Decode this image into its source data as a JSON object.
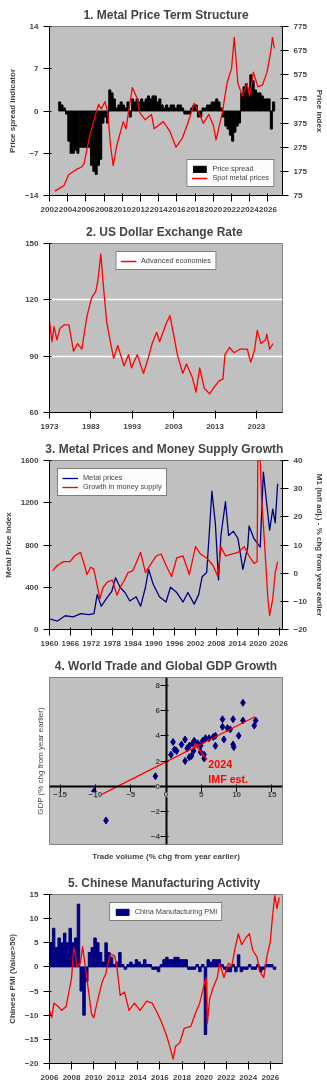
{
  "chart_data": [
    {
      "type": "bar",
      "title": "1. Metal Price Term Structure",
      "ylabel": "Price spread indicator",
      "y2label": "Price index",
      "xlim": [
        2002,
        2027.6
      ],
      "xticks": [
        2002,
        2004,
        2006,
        2008,
        2010,
        2012,
        2014,
        2016,
        2018,
        2020,
        2022,
        2024,
        2026
      ],
      "ylim": [
        -14,
        14
      ],
      "yticks": [
        -14,
        -7,
        0,
        7,
        14
      ],
      "y2lim": [
        75,
        775
      ],
      "y2ticks": [
        75,
        175,
        275,
        375,
        475,
        575,
        675,
        775
      ],
      "legend": "bottom right",
      "series": [
        {
          "name": "Price spread",
          "type": "bar",
          "color": "#000000",
          "x": [
            2003.125,
            2003.375,
            2003.625,
            2003.875,
            2004.125,
            2004.375,
            2004.625,
            2004.875,
            2005.125,
            2005.375,
            2005.625,
            2005.875,
            2006.125,
            2006.375,
            2006.625,
            2006.875,
            2007.125,
            2007.375,
            2007.625,
            2007.875,
            2008.125,
            2008.375,
            2008.625,
            2008.875,
            2009.125,
            2009.375,
            2009.625,
            2009.875,
            2010.125,
            2010.375,
            2010.625,
            2010.875,
            2011.125,
            2011.375,
            2011.625,
            2011.875,
            2012.125,
            2012.375,
            2012.625,
            2012.875,
            2013.125,
            2013.375,
            2013.625,
            2013.875,
            2014.125,
            2014.375,
            2014.625,
            2014.875,
            2015.125,
            2015.375,
            2015.625,
            2015.875,
            2016.125,
            2016.375,
            2016.625,
            2016.875,
            2017.125,
            2017.375,
            2017.625,
            2017.875,
            2018.125,
            2018.375,
            2018.625,
            2018.875,
            2019.125,
            2019.375,
            2019.625,
            2019.875,
            2020.125,
            2020.375,
            2020.625,
            2020.875,
            2021.125,
            2021.375,
            2021.625,
            2021.875,
            2022.125,
            2022.375,
            2022.625,
            2022.875,
            2023.125,
            2023.375,
            2023.625,
            2023.875,
            2024.125,
            2024.375,
            2024.625,
            2024.875,
            2025.125,
            2025.375,
            2025.625,
            2025.875,
            2026.125,
            2026.375,
            2026.625
          ],
          "values": [
            1.5,
            1,
            0.5,
            -0.5,
            -5,
            -7,
            -7,
            -6.5,
            -7,
            -6,
            -6,
            -6,
            -6,
            -6,
            -9,
            -10,
            -10.5,
            -9,
            -8,
            -2,
            -1,
            -2,
            3.5,
            3,
            2,
            0.5,
            1,
            1.5,
            1,
            0.5,
            1.5,
            -1,
            2,
            1.5,
            2,
            1.5,
            2,
            1.5,
            2,
            2.5,
            2,
            2.5,
            2.5,
            1.5,
            2,
            1,
            0.5,
            1,
            0.5,
            1,
            1,
            0.5,
            1,
            1,
            0.5,
            -0.5,
            -0.5,
            -0.5,
            0.5,
            1,
            1,
            -1,
            -1,
            0.5,
            0.5,
            1,
            1,
            1.5,
            1.5,
            2,
            1.5,
            0.5,
            -1,
            -2.5,
            -3,
            -4,
            -5,
            -3.5,
            -2.5,
            -2,
            3,
            4,
            4.5,
            3,
            6,
            5,
            3.5,
            3,
            3,
            2.5,
            2,
            2,
            2,
            -3,
            1.5
          ]
        },
        {
          "name": "Spot metal prices",
          "type": "line",
          "axis": "y2",
          "color": "#ff0000",
          "x": [
            2002.6,
            2003.6,
            2004.1,
            2005.0,
            2005.5,
            2005.8,
            2006.4,
            2007.0,
            2007.4,
            2007.7,
            2008.1,
            2008.4,
            2008.7,
            2009.0,
            2009.4,
            2010.1,
            2010.4,
            2011.1,
            2011.6,
            2011.9,
            2012.5,
            2013.2,
            2013.5,
            2014.5,
            2015.2,
            2015.9,
            2016.6,
            2017.2,
            2017.9,
            2018.4,
            2018.9,
            2019.5,
            2020.0,
            2020.3,
            2021.0,
            2021.5,
            2022.0,
            2022.3,
            2022.7,
            2023.2,
            2023.7,
            2024.0,
            2024.4,
            2024.9,
            2025.4,
            2025.9,
            2026.3,
            2026.5,
            2026.7
          ],
          "values": [
            93,
            116,
            161,
            184,
            192,
            207,
            320,
            404,
            452,
            434,
            464,
            419,
            283,
            199,
            283,
            381,
            351,
            522,
            480,
            419,
            389,
            411,
            351,
            381,
            343,
            275,
            313,
            374,
            457,
            419,
            374,
            411,
            366,
            305,
            419,
            540,
            601,
            730,
            540,
            487,
            540,
            487,
            586,
            525,
            533,
            586,
            669,
            730,
            684
          ]
        }
      ]
    },
    {
      "type": "line",
      "title": "2.  US Dollar Exchange Rate",
      "xlim": [
        1973,
        2029.3
      ],
      "xticks": [
        1973,
        1983,
        1993,
        2003,
        2013,
        2023
      ],
      "ylim": [
        60,
        150
      ],
      "yticks": [
        60,
        90,
        120,
        150
      ],
      "grid": "y",
      "legend": "top",
      "series": [
        {
          "name": "Advanced economies",
          "color": "#ff0000",
          "x": [
            1973,
            1973.6,
            1974.1,
            1974.8,
            1975.5,
            1976.6,
            1977.7,
            1978.8,
            1979.8,
            1980.8,
            1982.0,
            1983.1,
            1984.2,
            1984.7,
            1985.4,
            1985.9,
            1986.8,
            1987.7,
            1988.5,
            1989.5,
            1991.0,
            1992.1,
            1992.8,
            1994.2,
            1995.7,
            1996.7,
            1997.8,
            1998.9,
            1999.6,
            2001.1,
            2002.1,
            2002.9,
            2003.9,
            2005.2,
            2006.1,
            2007.5,
            2008.4,
            2009.3,
            2010.4,
            2011.7,
            2012.6,
            2014.0,
            2014.9,
            2015.4,
            2016.5,
            2017.6,
            2019.0,
            2020.8,
            2021.6,
            2022.5,
            2023.2,
            2024.1,
            2025.2,
            2025.5,
            2026.2,
            2027.0
          ],
          "values": [
            108.6,
            97.7,
            105.7,
            98.7,
            104.7,
            106.7,
            106.7,
            92.7,
            96.7,
            93.7,
            110.6,
            120.6,
            124.6,
            130.5,
            144.4,
            130.5,
            108.6,
            97.7,
            88.8,
            95.7,
            84.8,
            90.8,
            83.8,
            90.8,
            80.8,
            87.8,
            96.7,
            102.7,
            97.7,
            106.7,
            111.6,
            102.7,
            90.8,
            80.8,
            85.8,
            78.8,
            70.9,
            83.8,
            72.9,
            69.9,
            72.9,
            76.8,
            77.8,
            90.8,
            94.7,
            91.8,
            93.7,
            93.7,
            86.8,
            92.7,
            103.7,
            96.7,
            98.7,
            101.7,
            93.7,
            96.7
          ]
        }
      ]
    },
    {
      "type": "line",
      "title": "3.  Metal Prices and Money Supply Growth",
      "ylabel": "Metal Price Index",
      "y2label": "M1 (infl adj.) - % chg from year earlier",
      "xlim": [
        1960,
        2027
      ],
      "xticks": [
        1960,
        1966,
        1972,
        1978,
        1984,
        1990,
        1996,
        2002,
        2008,
        2014,
        2020,
        2026
      ],
      "ylim": [
        0,
        1600
      ],
      "yticks": [
        0,
        400,
        800,
        1200,
        1600
      ],
      "y2lim": [
        -20,
        40
      ],
      "y2ticks": [
        -20,
        -10,
        0,
        10,
        20,
        30,
        40
      ],
      "legend": "top left",
      "series": [
        {
          "name": "Metal prices",
          "color": "#000080",
          "x": [
            1960,
            1962.3,
            1964.5,
            1966.8,
            1969.0,
            1971.3,
            1972.8,
            1973.7,
            1974.9,
            1976.3,
            1977.9,
            1979.0,
            1980.3,
            1981.7,
            1983.1,
            1984.9,
            1986.2,
            1987.6,
            1988.5,
            1989.8,
            1991.6,
            1993.5,
            1994.8,
            1996.6,
            1998.4,
            1999.8,
            2001.6,
            2002.9,
            2003.9,
            2005.2,
            2005.9,
            2006.7,
            2007.7,
            2008.6,
            2009.3,
            2010.6,
            2011.5,
            2012.9,
            2014.2,
            2015.6,
            2017.0,
            2017.4,
            2018.8,
            2020.6,
            2021.5,
            2022.4,
            2023.3,
            2024.2,
            2024.9,
            2025.6
          ],
          "values": [
            100,
            80,
            130,
            120,
            150,
            140,
            150,
            330,
            220,
            290,
            360,
            490,
            400,
            350,
            270,
            310,
            220,
            400,
            570,
            430,
            310,
            260,
            400,
            350,
            260,
            350,
            240,
            330,
            500,
            540,
            890,
            1310,
            1000,
            470,
            890,
            1210,
            890,
            930,
            860,
            570,
            780,
            980,
            860,
            780,
            1490,
            1210,
            940,
            1140,
            1010,
            1380
          ]
        },
        {
          "name": "Growth in money supply",
          "axis": "y2",
          "color": "#ff0000",
          "x": [
            1960.9,
            1962.3,
            1964.1,
            1965.9,
            1967.2,
            1968.9,
            1969.9,
            1970.8,
            1971.8,
            1972.7,
            1973.4,
            1974.5,
            1975.4,
            1976.7,
            1978.1,
            1979.4,
            1980.3,
            1981.5,
            1982.6,
            1983.9,
            1984.9,
            1986.2,
            1987.6,
            1988.9,
            1990.7,
            1992.1,
            1993.5,
            1995.1,
            1996.6,
            1998.4,
            2000.2,
            2002.0,
            2003.4,
            2005.2,
            2007.0,
            2008.4,
            2009.3,
            2010.6,
            2012.4,
            2014.2,
            2016.0,
            2017.4,
            2018.8,
            2019.7,
            2019.9,
            2020.6,
            2021.0,
            2021.9,
            2022.8,
            2023.3,
            2024.2,
            2024.9,
            2025.6
          ],
          "values": [
            0.8,
            2.8,
            4.1,
            4.1,
            6.1,
            7.4,
            3.5,
            -0.5,
            2.1,
            1.5,
            -2.5,
            -9.1,
            -5.1,
            -3.1,
            -2.5,
            -7.8,
            -5.1,
            -2.5,
            0.2,
            0.8,
            3.5,
            7.4,
            0.2,
            2.8,
            6.1,
            6.8,
            2.8,
            -1.2,
            5.4,
            6.1,
            -0.5,
            9.4,
            6.8,
            5.4,
            2.8,
            -1.2,
            9.4,
            6.1,
            6.8,
            7.4,
            9.4,
            6.1,
            3.5,
            4.1,
            40,
            40,
            26.5,
            9.4,
            -9.1,
            -15,
            -9.1,
            0.2,
            4.1
          ]
        }
      ]
    },
    {
      "type": "scatter",
      "title": "4. World Trade and Global GDP Growth",
      "xlabel": "Trade volume (% chg from year earlier)",
      "ylabel": "GDP (% chg from year earlier)",
      "xlim": [
        -16.5,
        16.5
      ],
      "xticks": [
        -15,
        -10,
        -5,
        0,
        5,
        10,
        15
      ],
      "ylim": [
        -4.6,
        8.6
      ],
      "yticks": [
        -4,
        -2,
        0,
        2,
        4,
        6,
        8
      ],
      "marker": "diamond",
      "annotations": [
        {
          "text": "2024\nIMF est.",
          "x": 4,
          "y": 3.4
        }
      ],
      "series": [
        {
          "color": "#000080",
          "x": [
            -10.2,
            -8.5,
            -1.5,
            0.7,
            1.0,
            1.2,
            1.5,
            2.2,
            2.7,
            2.7,
            3.0,
            3.3,
            3.3,
            3.6,
            3.8,
            4.0,
            3.9,
            4.5,
            4.9,
            4.9,
            5.4,
            5.4,
            5.2,
            5.6,
            6.1,
            6.7,
            7.0,
            7.0,
            8.0,
            8.0,
            8.2,
            8.7,
            9.1,
            9.5,
            9.5,
            9.6,
            10.3,
            10.9,
            10.9,
            12.5,
            12.7
          ],
          "values": [
            -0.4,
            -2.7,
            0.8,
            2.5,
            3.5,
            2.9,
            2.8,
            3.3,
            3.7,
            2.0,
            3.0,
            3.2,
            2.3,
            2.4,
            3.4,
            3.6,
            2.8,
            3.4,
            2.7,
            3.2,
            2.5,
            2.2,
            3.6,
            3.8,
            3.8,
            3.9,
            4.0,
            3.2,
            5.3,
            4.7,
            3.7,
            4.6,
            4.5,
            5.3,
            3.3,
            3.1,
            4.0,
            6.6,
            5.2,
            4.8,
            5.2
          ]
        },
        {
          "type": "line",
          "marker": "none",
          "color": "#ff0000",
          "x": [
            -10,
            12.6
          ],
          "values": [
            -0.9,
            5.5
          ]
        }
      ]
    },
    {
      "type": "bar",
      "title": "5.  Chinese Manufacturing Activity",
      "ylabel": "Chinese PMI (Value>50)",
      "xlim": [
        2006,
        2027.1
      ],
      "xticks": [
        2006,
        2008,
        2010,
        2012,
        2014,
        2016,
        2018,
        2020,
        2022,
        2024,
        2026
      ],
      "ylim": [
        -20,
        15
      ],
      "yticks": [
        -20,
        -15,
        -10,
        -5,
        0,
        5,
        10,
        15
      ],
      "legend": "top",
      "series": [
        {
          "name": "China Manufacturing PMI",
          "type": "bar",
          "color": "#000080",
          "x": [
            2006.125,
            2006.375,
            2006.625,
            2006.875,
            2007.125,
            2007.375,
            2007.625,
            2007.875,
            2008.125,
            2008.375,
            2008.625,
            2008.875,
            2009.125,
            2009.375,
            2009.625,
            2009.875,
            2010.125,
            2010.375,
            2010.625,
            2010.875,
            2011.125,
            2011.375,
            2011.625,
            2011.875,
            2012.125,
            2012.375,
            2012.625,
            2012.875,
            2013.125,
            2013.375,
            2013.625,
            2013.875,
            2014.125,
            2014.375,
            2014.625,
            2014.875,
            2015.125,
            2015.375,
            2015.625,
            2015.875,
            2016.125,
            2016.375,
            2016.625,
            2016.875,
            2017.125,
            2017.375,
            2017.625,
            2017.875,
            2018.125,
            2018.375,
            2018.625,
            2018.875,
            2019.125,
            2019.375,
            2019.625,
            2019.875,
            2020.125,
            2020.375,
            2020.625,
            2020.875,
            2021.125,
            2021.375,
            2021.625,
            2021.875,
            2022.125,
            2022.375,
            2022.625,
            2022.875,
            2023.125,
            2023.375,
            2023.625,
            2023.875,
            2024.125,
            2024.375,
            2024.625,
            2024.875,
            2025.125,
            2025.375,
            2025.625,
            2025.875,
            2026.125,
            2026.375
          ],
          "values": [
            5,
            8,
            4,
            6,
            5,
            7,
            5,
            8,
            5,
            6,
            13,
            -5,
            -10,
            -3,
            3,
            4,
            6,
            5,
            3,
            1,
            5,
            3,
            2,
            0.5,
            1,
            3,
            0.5,
            -0.5,
            0.5,
            1,
            0.5,
            1.5,
            1,
            0.5,
            1.5,
            0.5,
            0.5,
            -0.5,
            -0.5,
            -1,
            0.5,
            1.5,
            2,
            1.5,
            1.5,
            2,
            2,
            1.5,
            1.5,
            1.5,
            -0.5,
            -0.5,
            -0.5,
            0.5,
            -1,
            0.5,
            -14,
            1.5,
            1,
            1.5,
            1.5,
            1.5,
            0.5,
            -0.5,
            -1,
            -1,
            0.5,
            -1,
            2.5,
            -1,
            -0.5,
            -0.5,
            0.5,
            -0.5,
            -0.5,
            0.5,
            -1,
            -0.5,
            0.5,
            0.5,
            0.5,
            -0.5
          ]
        },
        {
          "type": "line",
          "color": "#ff0000",
          "x": [
            2006.0,
            2006.2,
            2006.4,
            2006.8,
            2007.1,
            2007.5,
            2007.7,
            2008.0,
            2008.2,
            2008.3,
            2008.5,
            2008.8,
            2009.0,
            2009.2,
            2009.5,
            2009.8,
            2010.0,
            2010.3,
            2010.8,
            2011.1,
            2011.5,
            2011.9,
            2012.1,
            2012.4,
            2012.8,
            2013.2,
            2013.7,
            2014.2,
            2014.8,
            2015.3,
            2015.8,
            2016.1,
            2016.6,
            2016.9,
            2017.2,
            2017.4,
            2017.8,
            2018.2,
            2018.8,
            2019.2,
            2019.6,
            2020.0,
            2020.2,
            2020.3,
            2020.5,
            2020.8,
            2021.2,
            2021.4,
            2021.8,
            2022.2,
            2022.5,
            2022.8,
            2023.1,
            2023.4,
            2023.8,
            2024.1,
            2024.4,
            2024.8,
            2025.0,
            2025.4,
            2025.7,
            2026.0,
            2026.2,
            2026.4,
            2026.6,
            2026.8
          ],
          "values": [
            -9,
            -10.5,
            -7.5,
            -8.2,
            -9,
            -8.2,
            -5.9,
            -2.2,
            4,
            3.1,
            0.1,
            0.8,
            4.2,
            0.8,
            -4.4,
            -9.7,
            -10.5,
            -7.5,
            -2.9,
            -1.4,
            2.7,
            2.3,
            0.1,
            -5.9,
            -5.2,
            -9,
            -7.5,
            -9,
            -7.1,
            -7.5,
            -9.7,
            -11.2,
            -14.2,
            -16.5,
            -19.1,
            -16.5,
            -15.7,
            -12.7,
            -12.3,
            -9.7,
            -7.5,
            -3.7,
            -2.2,
            -11.6,
            -6.7,
            -4.4,
            -2.2,
            0.8,
            -2.2,
            0.8,
            0.1,
            3.8,
            6.9,
            4.6,
            6.1,
            6.9,
            3.5,
            2.0,
            -0.7,
            -2.2,
            2.3,
            5.3,
            10.6,
            14.8,
            12.1,
            14.4
          ]
        }
      ]
    }
  ]
}
